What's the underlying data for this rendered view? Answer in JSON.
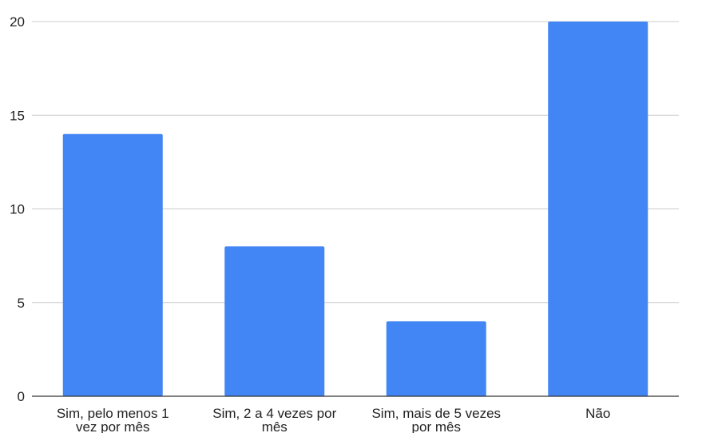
{
  "chart_data": {
    "type": "bar",
    "title": "",
    "xlabel": "",
    "ylabel": "",
    "categories": [
      "Sim, pelo menos 1 vez por mês",
      "Sim, 2 a 4 vezes por mês",
      "Sim, mais de 5 vezes por mês",
      "Não"
    ],
    "category_label_lines": [
      [
        "Sim, pelo menos 1",
        "vez por mês"
      ],
      [
        "Sim, 2 a 4 vezes por",
        "mês"
      ],
      [
        "Sim, mais de 5 vezes",
        "por mês"
      ],
      [
        "Não"
      ]
    ],
    "values": [
      14,
      8,
      4,
      20
    ],
    "ylim": [
      0,
      20
    ],
    "yticks": [
      0,
      5,
      10,
      15,
      20
    ],
    "ytick_labels": [
      "0",
      "5",
      "10",
      "15",
      "20"
    ],
    "grid": true,
    "legend": "none",
    "colors": {
      "bar": "#4285f4",
      "grid": "#cccccc",
      "axis": "#333333",
      "text": "#222222"
    }
  }
}
